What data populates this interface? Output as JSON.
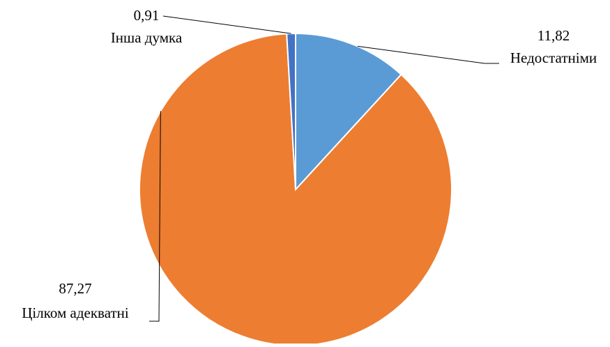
{
  "chart_data": {
    "type": "pie",
    "title": "",
    "start": "top",
    "direction": "clockwise",
    "slices": [
      {
        "label": "Недостатніми",
        "value": 11.82,
        "value_label": "11,82",
        "color": "#5B9BD5"
      },
      {
        "label": "Цілком адекватні",
        "value": 87.27,
        "value_label": "87,27",
        "color": "#ED7D31"
      },
      {
        "label": "Інша думка",
        "value": 0.91,
        "value_label": "0,91",
        "color": "#4472C4"
      }
    ]
  }
}
